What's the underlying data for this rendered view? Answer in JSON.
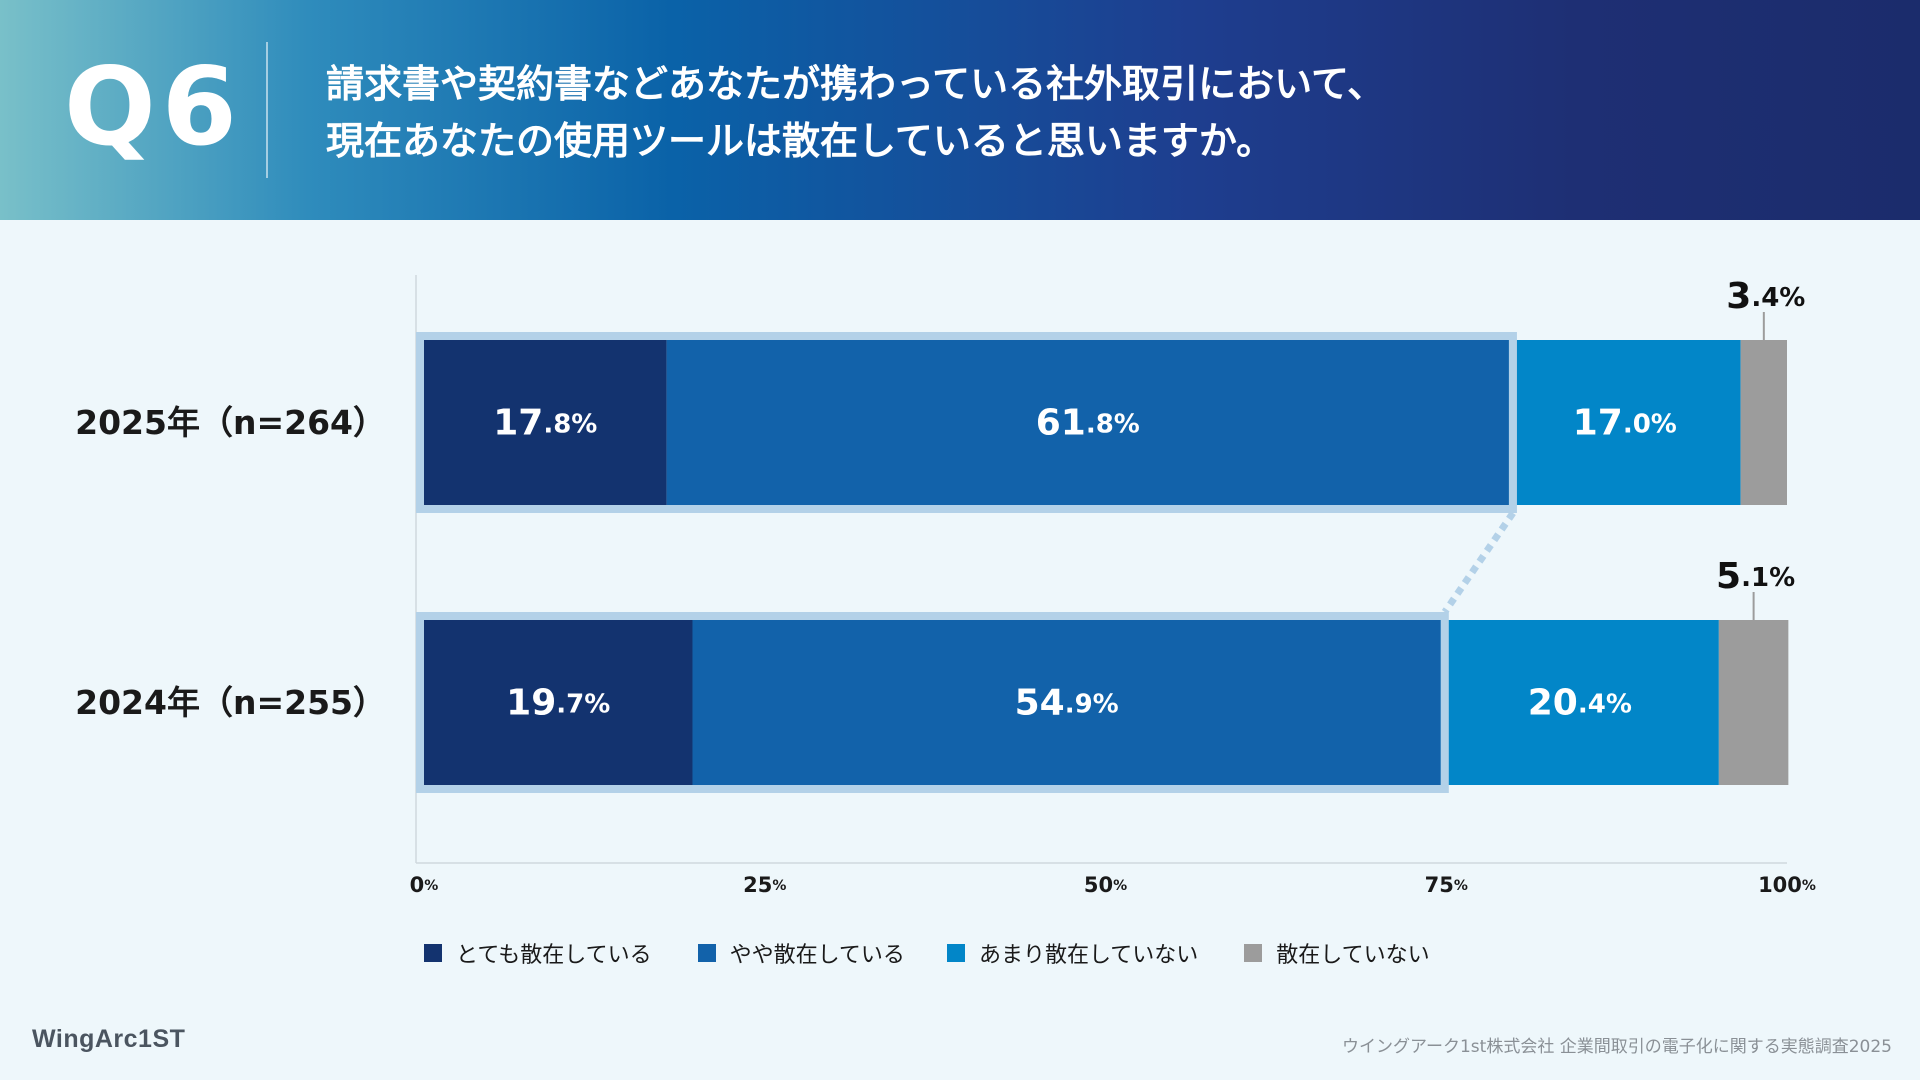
{
  "header": {
    "question_number": "Q6",
    "question_line1": "請求書や契約書などあなたが携わっている社外取引において、",
    "question_line2": "現在あなたの使用ツールは散在していると思いますか。"
  },
  "colors": {
    "very_scattered": "#13336f",
    "somewhat_scattered": "#1262aa",
    "not_very_scattered": "#0286c8",
    "not_scattered": "#9c9c9c",
    "highlight_frame": "#b3d1e8"
  },
  "chart_data": {
    "type": "bar",
    "orientation": "horizontal",
    "stacked": true,
    "categories": [
      "2025年（n=264）",
      "2024年（n=255）"
    ],
    "series": [
      {
        "name": "とても散在している",
        "values": [
          17.8,
          19.7
        ]
      },
      {
        "name": "やや散在している",
        "values": [
          61.8,
          54.9
        ]
      },
      {
        "name": "あまり散在していない",
        "values": [
          17.0,
          20.4
        ]
      },
      {
        "name": "散在していない",
        "values": [
          3.4,
          5.1
        ]
      }
    ],
    "data_labels": [
      [
        "17.8%",
        "61.8%",
        "17.0%",
        "3.4%"
      ],
      [
        "19.7%",
        "54.9%",
        "20.4%",
        "5.1%"
      ]
    ],
    "xlim": [
      0,
      100
    ],
    "x_ticks": [
      "0%",
      "25%",
      "50%",
      "75%",
      "100%"
    ],
    "highlight": "とても散在している + やや散在している",
    "grid": false,
    "legend": "bottom"
  },
  "legend": {
    "items": [
      "とても散在している",
      "やや散在している",
      "あまり散在していない",
      "散在していない"
    ]
  },
  "footer": {
    "logo": "WingArc1ST",
    "source": "ウイングアーク1st株式会社 企業間取引の電子化に関する実態調査2025"
  }
}
